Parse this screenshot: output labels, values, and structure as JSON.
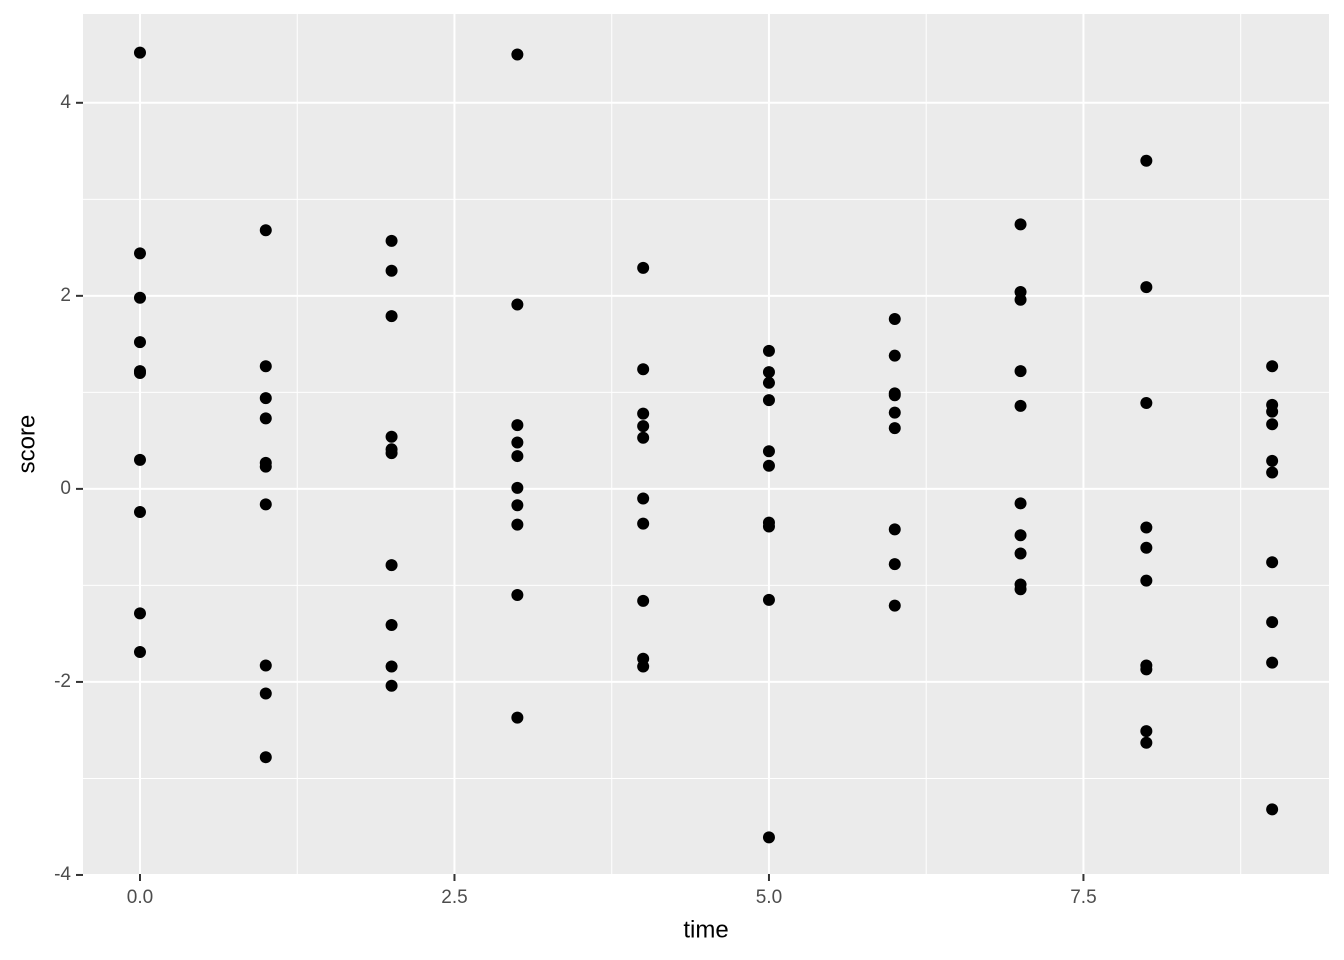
{
  "chart_data": {
    "type": "scatter",
    "x_label": "time",
    "y_label": "score",
    "x": [
      0,
      0,
      0,
      0,
      0,
      0,
      0,
      0,
      0,
      0,
      1,
      1,
      1,
      1,
      1,
      1,
      1,
      1,
      1,
      1,
      2,
      2,
      2,
      2,
      2,
      2,
      2,
      2,
      2,
      2,
      3,
      3,
      3,
      3,
      3,
      3,
      3,
      3,
      3,
      3,
      4,
      4,
      4,
      4,
      4,
      4,
      4,
      4,
      4,
      4,
      5,
      5,
      5,
      5,
      5,
      5,
      5,
      5,
      5,
      5,
      6,
      6,
      6,
      6,
      6,
      6,
      6,
      6,
      6,
      7,
      7,
      7,
      7,
      7,
      7,
      7,
      7,
      7,
      7,
      8,
      8,
      8,
      8,
      8,
      8,
      8,
      8,
      8,
      8,
      9,
      9,
      9,
      9,
      9,
      9,
      9,
      9,
      9,
      9
    ],
    "y": [
      4.52,
      2.44,
      1.98,
      1.52,
      1.22,
      1.2,
      0.3,
      -0.24,
      -1.29,
      -1.69,
      2.68,
      1.27,
      0.94,
      0.73,
      0.27,
      0.23,
      -0.16,
      -1.83,
      -2.12,
      -2.78,
      2.57,
      2.26,
      1.79,
      0.54,
      0.41,
      0.37,
      -0.79,
      -1.41,
      -1.84,
      -2.04,
      4.5,
      1.91,
      0.66,
      0.48,
      0.34,
      0.01,
      -0.17,
      -0.37,
      -1.1,
      -2.37,
      2.29,
      1.24,
      0.78,
      0.65,
      0.53,
      -0.1,
      -0.36,
      -1.16,
      -1.76,
      -1.84,
      1.43,
      1.21,
      1.1,
      0.92,
      0.39,
      0.24,
      -0.35,
      -0.39,
      -1.15,
      -3.61,
      1.76,
      1.38,
      0.99,
      0.97,
      0.79,
      0.63,
      -0.42,
      -0.78,
      -1.21,
      2.74,
      2.04,
      1.96,
      1.22,
      0.86,
      -0.15,
      -0.48,
      -0.67,
      -0.99,
      -1.04,
      3.4,
      2.09,
      0.89,
      -0.4,
      -0.61,
      -0.95,
      -1.83,
      -1.87,
      -2.51,
      -2.63,
      1.27,
      0.87,
      0.8,
      0.67,
      0.29,
      0.17,
      -0.76,
      -1.38,
      -1.8,
      -3.32
    ],
    "color": "#000000",
    "xlim": [
      -0.453,
      9.452
    ],
    "ylim": [
      -3.99,
      4.92
    ],
    "xticks": [
      {
        "value": 0,
        "label": "0.0"
      },
      2.5,
      {
        "value": 5,
        "label": "5.0"
      },
      7.5
    ],
    "yticks": [
      -4,
      -2,
      0,
      2,
      4
    ],
    "grid": true
  }
}
